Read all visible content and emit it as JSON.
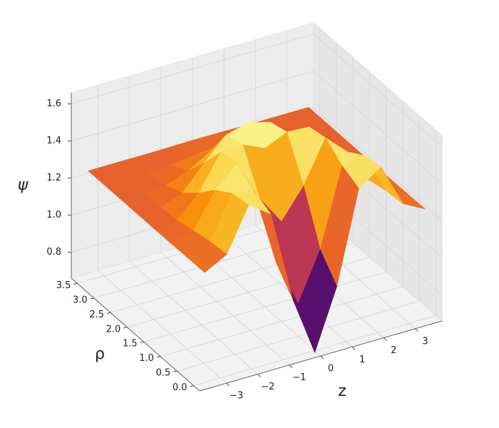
{
  "chart_data": {
    "type": "surface",
    "colormap": "inferno",
    "grid": true,
    "xlabel": "z",
    "ylabel": "ρ",
    "zlabel": "ψ",
    "x": [
      -3.5,
      -2.8,
      -2.1,
      -1.4,
      -0.7,
      0,
      0.7,
      1.4,
      2.1,
      2.8,
      3.5
    ],
    "y": [
      0,
      0.5,
      1,
      1.5,
      2,
      2.5,
      3,
      3.5
    ],
    "values": [
      [
        1.253,
        1.316,
        1.549,
        1.466,
        0.972,
        0.65,
        0.972,
        1.466,
        1.549,
        1.316,
        1.253
      ],
      [
        1.252,
        1.307,
        1.531,
        1.509,
        1.092,
        0.832,
        1.092,
        1.509,
        1.531,
        1.307,
        1.252
      ],
      [
        1.251,
        1.285,
        1.471,
        1.581,
        1.357,
        1.198,
        1.357,
        1.581,
        1.471,
        1.285,
        1.251
      ],
      [
        1.25,
        1.265,
        1.377,
        1.562,
        1.568,
        1.515,
        1.568,
        1.562,
        1.377,
        1.265,
        1.25
      ],
      [
        1.25,
        1.254,
        1.297,
        1.426,
        1.543,
        1.574,
        1.543,
        1.426,
        1.297,
        1.254,
        1.25
      ],
      [
        1.25,
        1.251,
        1.26,
        1.302,
        1.372,
        1.405,
        1.372,
        1.302,
        1.26,
        1.251,
        1.25
      ],
      [
        1.25,
        1.25,
        1.251,
        1.258,
        1.273,
        1.282,
        1.273,
        1.258,
        1.251,
        1.25,
        1.25
      ],
      [
        1.25,
        1.25,
        1.25,
        1.25,
        1.252,
        1.253,
        1.252,
        1.25,
        1.25,
        1.25,
        1.25
      ]
    ],
    "xlim": [
      -3.85,
      3.85
    ],
    "ylim": [
      -0.18,
      3.68
    ],
    "zlim": [
      0.66,
      1.66
    ],
    "xticks": [
      {
        "value": -3,
        "label": "−3"
      },
      {
        "value": -2,
        "label": "−2"
      },
      {
        "value": -1,
        "label": "−1"
      },
      0,
      1,
      2,
      3
    ],
    "yticks": [
      {
        "value": 0,
        "label": "0.0"
      },
      0.5,
      {
        "value": 1,
        "label": "1.0"
      },
      1.5,
      {
        "value": 2,
        "label": "2.0"
      },
      2.5,
      {
        "value": 3,
        "label": "3.0"
      },
      3.5
    ],
    "zticks": [
      0.8,
      {
        "value": 1,
        "label": "1.0"
      },
      1.2,
      1.4,
      1.6
    ]
  }
}
